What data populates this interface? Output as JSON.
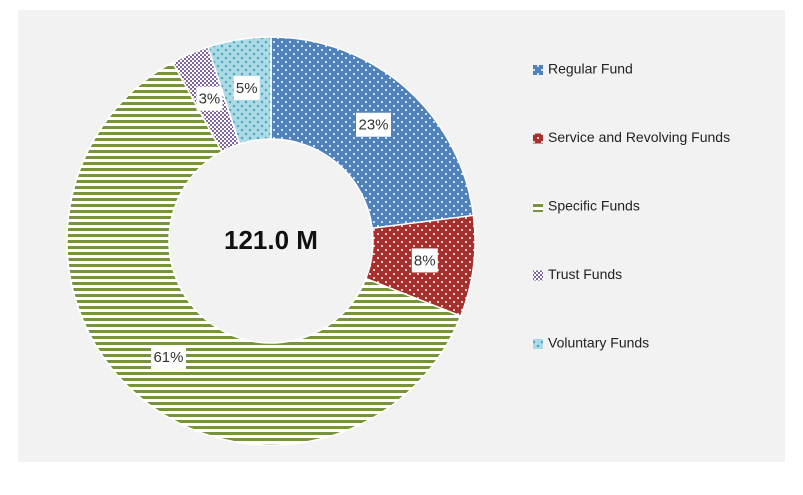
{
  "chart_data": {
    "type": "donut",
    "center_label": "121.0 M",
    "categories": [
      "Regular  Fund",
      "Service  and Revolving  Funds",
      "Specific Funds",
      "Trust  Funds",
      "Voluntary  Funds"
    ],
    "values": [
      23,
      8,
      61,
      3,
      5
    ],
    "value_labels": [
      "23%",
      "8%",
      "61%",
      "3%",
      "5%"
    ],
    "colors": [
      "#4f81bd",
      "#a5302e",
      "#77933c",
      "#8064a2",
      "#4bacc6"
    ],
    "legend": "right"
  }
}
